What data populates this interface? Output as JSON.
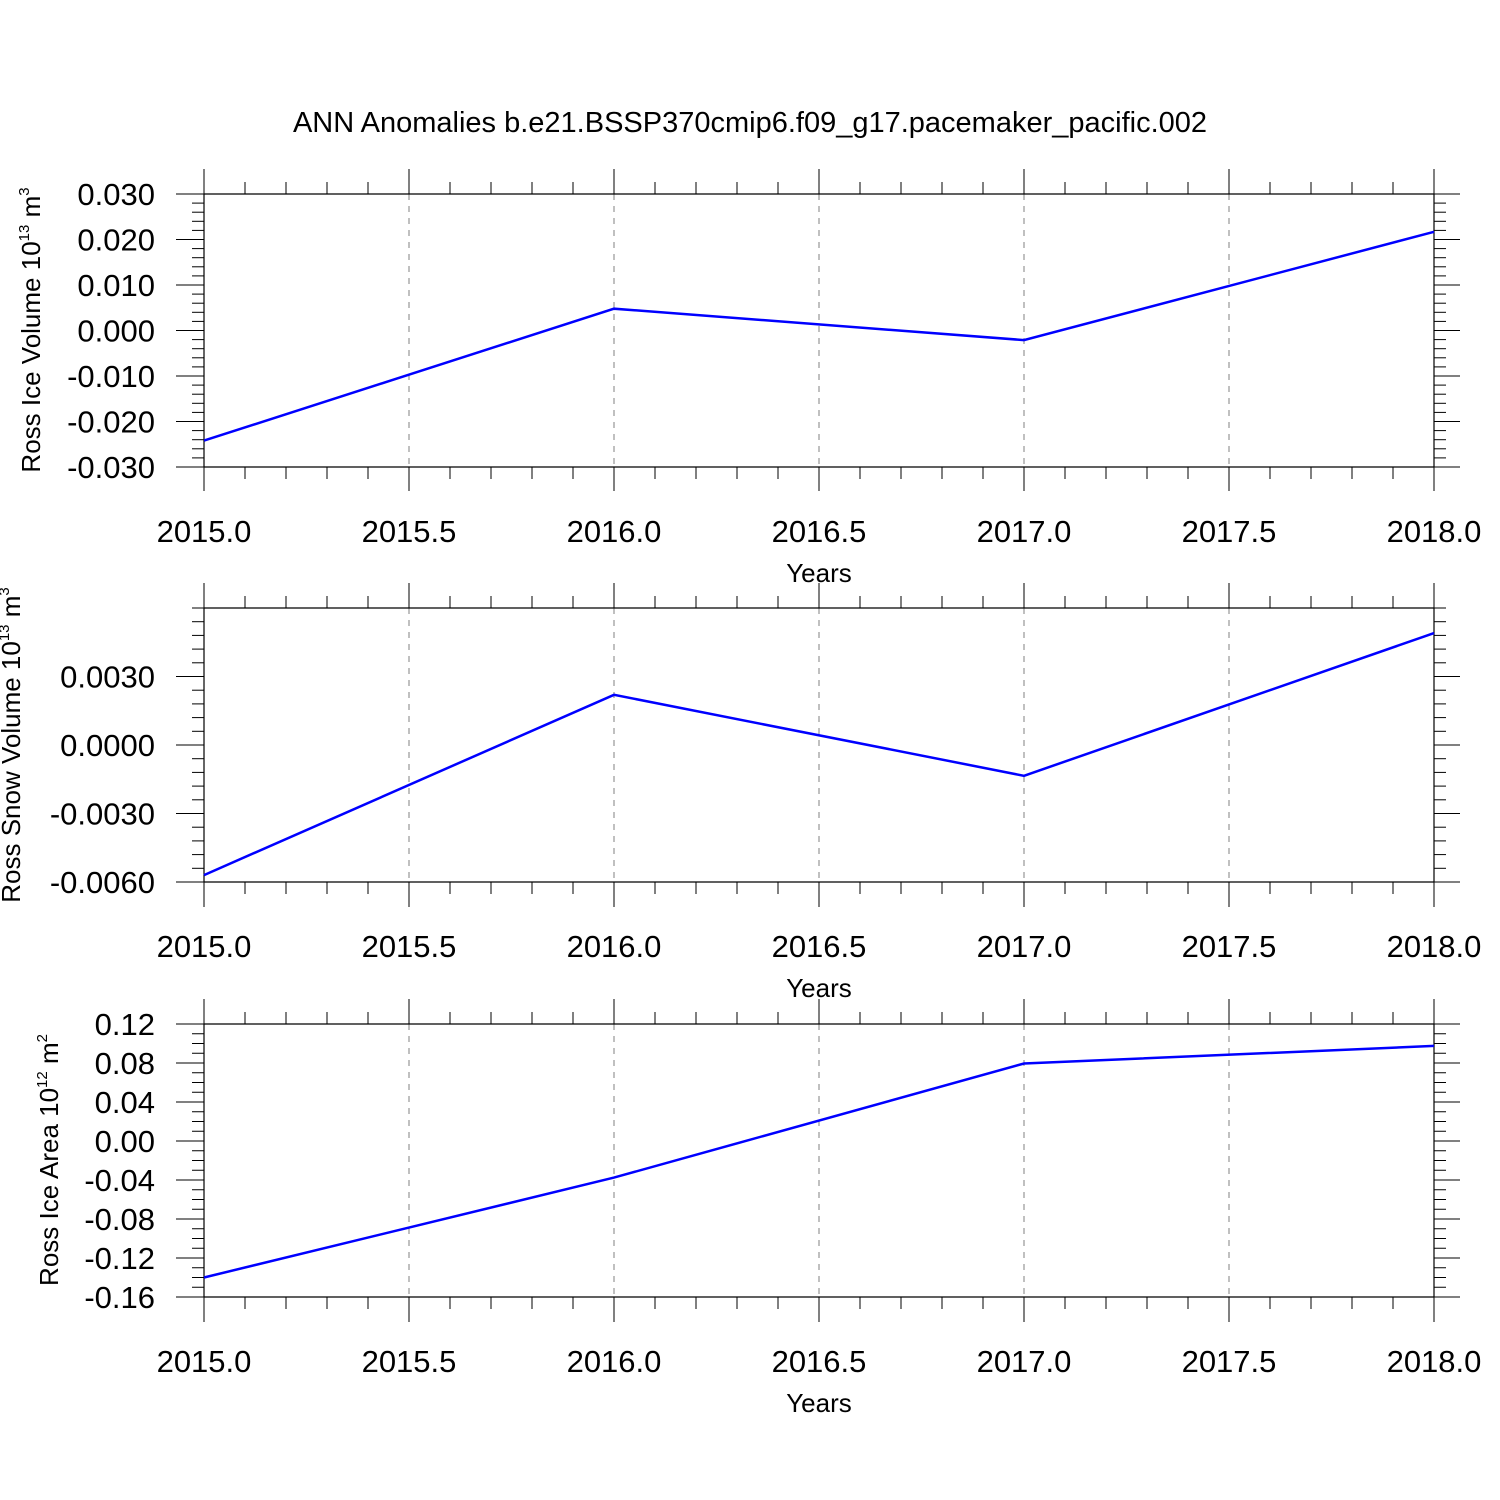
{
  "title": "ANN Anomalies b.e21.BSSP370cmip6.f09_g17.pacemaker_pacific.002",
  "colors": {
    "line": "#0000ff",
    "axis": "#000000",
    "grid": "#808080",
    "background": "#ffffff"
  },
  "chart_data": [
    {
      "type": "line",
      "xlabel": "Years",
      "ylabel": {
        "text": "Ross Ice Volume 10",
        "exp": "13",
        "unit": " m",
        "unit_exp": "3"
      },
      "xlim": [
        2015.0,
        2018.0
      ],
      "ylim": [
        -0.03,
        0.03
      ],
      "xticks": [
        2015.0,
        2015.5,
        2016.0,
        2016.5,
        2017.0,
        2017.5,
        2018.0
      ],
      "xtick_labels": [
        "2015.0",
        "2015.5",
        "2016.0",
        "2016.5",
        "2017.0",
        "2017.5",
        "2018.0"
      ],
      "yticks": [
        0.03,
        0.02,
        0.01,
        0.0,
        -0.01,
        -0.02,
        -0.03
      ],
      "ytick_labels": [
        "0.030",
        "0.020",
        "0.010",
        "0.000",
        "-0.010",
        "-0.020",
        "-0.030"
      ],
      "grid": "vertical dashed",
      "series": [
        {
          "x": [
            2015,
            2016,
            2017,
            2018
          ],
          "y": [
            -0.0242,
            0.0048,
            -0.0021,
            0.0217
          ]
        }
      ]
    },
    {
      "type": "line",
      "xlabel": "Years",
      "ylabel": {
        "text": "Ross Snow Volume 10",
        "exp": "13",
        "unit": " m",
        "unit_exp": "3"
      },
      "xlim": [
        2015.0,
        2018.0
      ],
      "ylim": [
        -0.006,
        0.006
      ],
      "xticks": [
        2015.0,
        2015.5,
        2016.0,
        2016.5,
        2017.0,
        2017.5,
        2018.0
      ],
      "xtick_labels": [
        "2015.0",
        "2015.5",
        "2016.0",
        "2016.5",
        "2017.0",
        "2017.5",
        "2018.0"
      ],
      "yticks": [
        0.003,
        0.0,
        -0.003,
        -0.006
      ],
      "ytick_labels": [
        "0.0030",
        "0.0000",
        "-0.0030",
        "-0.0060"
      ],
      "grid": "vertical dashed",
      "series": [
        {
          "x": [
            2015,
            2016,
            2017,
            2018
          ],
          "y": [
            -0.0057,
            0.0022,
            -0.00135,
            0.0049
          ]
        }
      ]
    },
    {
      "type": "line",
      "xlabel": "Years",
      "ylabel": {
        "text": "Ross Ice Area 10",
        "exp": "12",
        "unit": " m",
        "unit_exp": "2"
      },
      "xlim": [
        2015.0,
        2018.0
      ],
      "ylim": [
        -0.16,
        0.12
      ],
      "xticks": [
        2015.0,
        2015.5,
        2016.0,
        2016.5,
        2017.0,
        2017.5,
        2018.0
      ],
      "xtick_labels": [
        "2015.0",
        "2015.5",
        "2016.0",
        "2016.5",
        "2017.0",
        "2017.5",
        "2018.0"
      ],
      "yticks": [
        0.12,
        0.08,
        0.04,
        0.0,
        -0.04,
        -0.08,
        -0.12,
        -0.16
      ],
      "ytick_labels": [
        "0.12",
        "0.08",
        "0.04",
        "0.00",
        "-0.04",
        "-0.08",
        "-0.12",
        "-0.16"
      ],
      "grid": "vertical dashed",
      "series": [
        {
          "x": [
            2015,
            2016,
            2017,
            2018
          ],
          "y": [
            -0.14,
            -0.0375,
            0.0795,
            0.0975
          ]
        }
      ]
    }
  ]
}
